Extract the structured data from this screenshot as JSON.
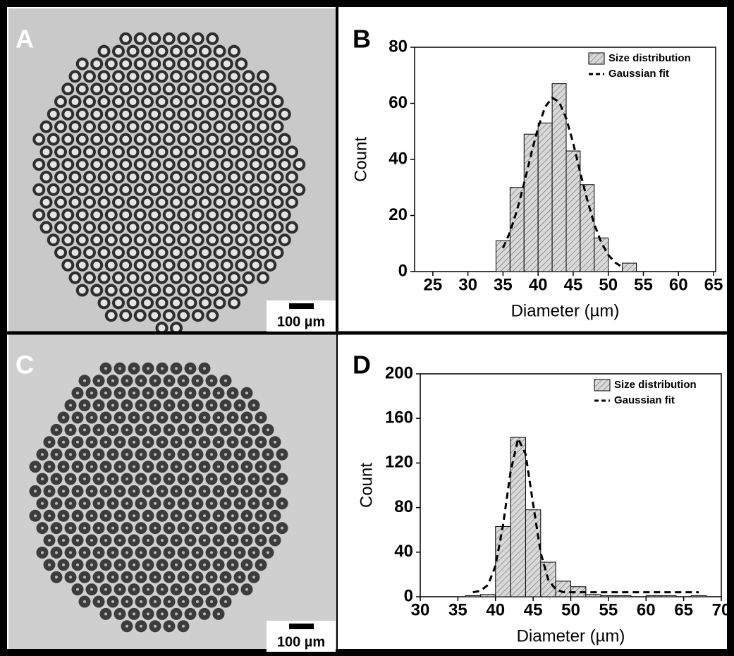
{
  "images": [
    {
      "label": "A",
      "scale_bar": "100 µm"
    },
    {
      "label": "C",
      "scale_bar": "100 µm"
    }
  ],
  "chart_data": [
    {
      "type": "histogram",
      "panel_label": "B",
      "xlabel": "Diameter (µm)",
      "ylabel": "Count",
      "xlim": [
        22.4,
        65.3
      ],
      "xticks": [
        25,
        30,
        35,
        40,
        45,
        50,
        55,
        60,
        65
      ],
      "ylim": [
        0,
        80
      ],
      "yticks": [
        0,
        20,
        40,
        60,
        80
      ],
      "legend": "upper right",
      "bins": [
        34,
        36,
        38,
        40,
        42,
        44,
        46,
        48,
        50,
        52,
        54
      ],
      "series": [
        {
          "name": "Size distribution",
          "color": "#d8d8d8",
          "values": [
            11,
            30,
            49,
            53,
            67,
            43,
            31,
            12,
            0,
            3
          ]
        },
        {
          "name": "Gaussian fit",
          "color": "#000000",
          "x": [
            35,
            36,
            37,
            38,
            39,
            40,
            41,
            42,
            43,
            44,
            45,
            46,
            47,
            48,
            49,
            50,
            51,
            52
          ],
          "values": [
            8.4,
            14.1,
            21.9,
            31.4,
            41.8,
            51.4,
            58.7,
            62,
            60.5,
            54.7,
            45.8,
            35.3,
            25.6,
            16.9,
            10.4,
            5.9,
            3.2,
            1.6
          ]
        }
      ]
    },
    {
      "type": "histogram",
      "panel_label": "D",
      "xlabel": "Diameter (µm)",
      "ylabel": "Count",
      "xlim": [
        30,
        70
      ],
      "xticks": [
        30,
        35,
        40,
        45,
        50,
        55,
        60,
        65,
        70
      ],
      "ylim": [
        0,
        200
      ],
      "yticks": [
        0,
        40,
        80,
        120,
        160,
        200
      ],
      "legend": "upper right",
      "bins": [
        36,
        38,
        40,
        42,
        44,
        46,
        48,
        50,
        52,
        54,
        56,
        58,
        60,
        62,
        64,
        66,
        68
      ],
      "series": [
        {
          "name": "Size distribution",
          "color": "#d8d8d8",
          "values": [
            1,
            2,
            63,
            143,
            78,
            31,
            14,
            9,
            2,
            1,
            1,
            0,
            1,
            1,
            0,
            1
          ]
        },
        {
          "name": "Gaussian fit",
          "color": "#000000",
          "x": [
            37,
            38,
            39,
            40,
            41,
            42,
            43,
            44,
            45,
            46,
            47,
            48,
            49,
            50,
            67
          ],
          "values": [
            4,
            5.3,
            10.5,
            27.8,
            64.3,
            112,
            142,
            128,
            83,
            39.6,
            15.4,
            6.6,
            4.1,
            4,
            4
          ]
        }
      ]
    }
  ]
}
